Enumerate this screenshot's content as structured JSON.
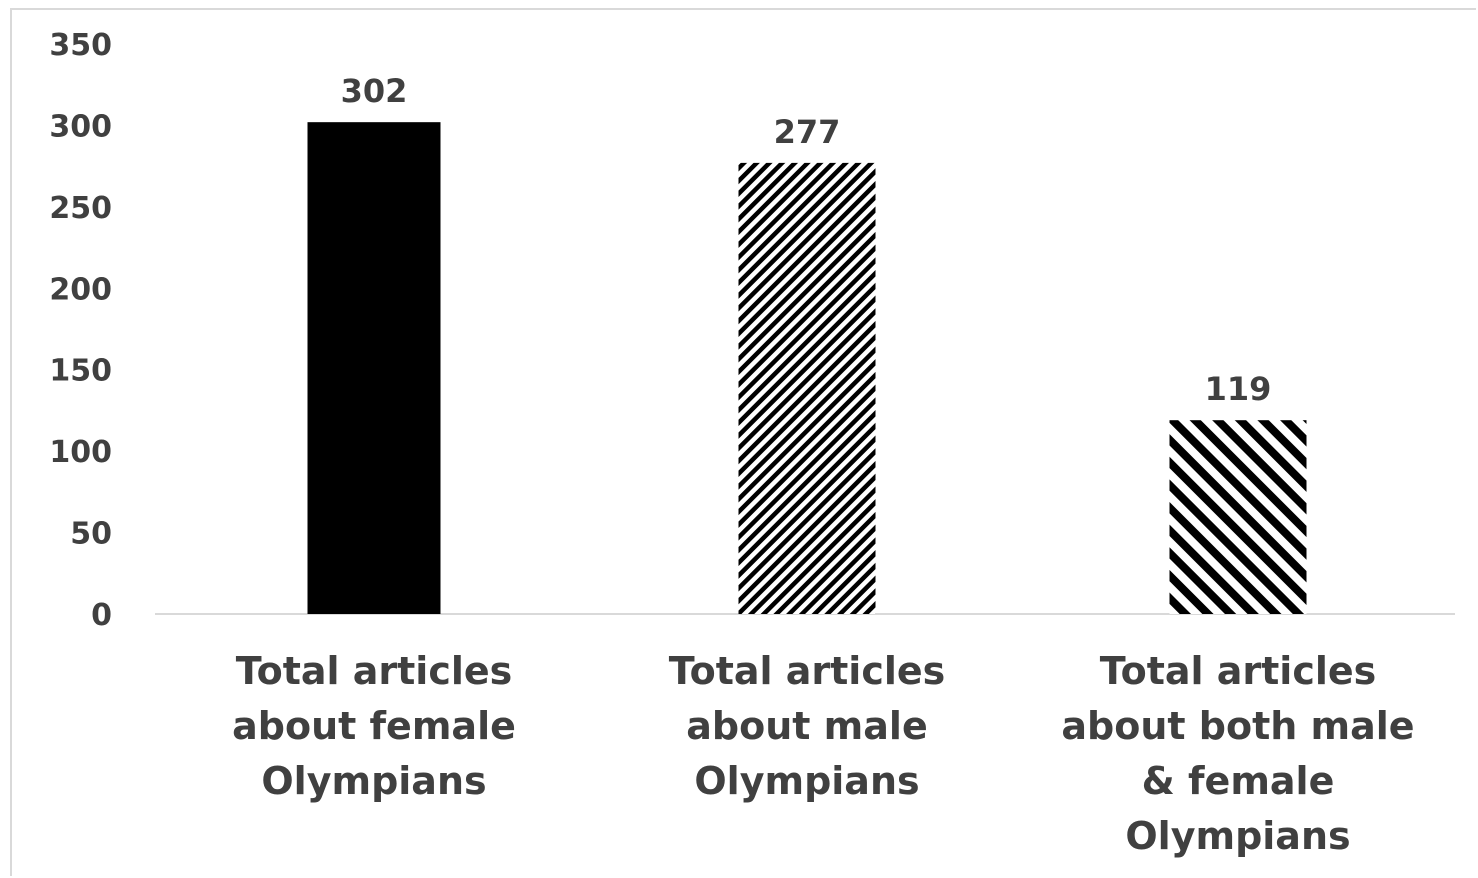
{
  "chart_data": {
    "type": "bar",
    "categories": [
      [
        "Total articles",
        "about female",
        "Olympians"
      ],
      [
        "Total articles",
        "about male",
        "Olympians"
      ],
      [
        "Total articles",
        "about both male",
        "& female",
        "Olympians"
      ]
    ],
    "values": [
      302,
      277,
      119
    ],
    "data_labels": [
      "302",
      "277",
      "119"
    ],
    "fills": [
      "solid",
      "fine-diagonal-hatch",
      "wide-diagonal-hatch"
    ],
    "bar_color": "#000000",
    "ylim": [
      0,
      350
    ],
    "yticks": [
      "0",
      "50",
      "100",
      "150",
      "200",
      "250",
      "300",
      "350"
    ],
    "grid": false,
    "legend": "none",
    "title": "",
    "xlabel": "",
    "ylabel": ""
  }
}
